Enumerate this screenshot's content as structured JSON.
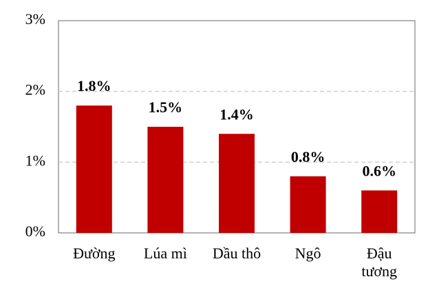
{
  "chart_data": {
    "type": "bar",
    "categories": [
      "Đường",
      "Lúa mì",
      "Dầu thô",
      "Ngô",
      "Đậu tương"
    ],
    "values": [
      1.8,
      1.5,
      1.4,
      0.8,
      0.6
    ],
    "value_labels": [
      "1.8%",
      "1.5%",
      "1.4%",
      "0.8%",
      "0.6%"
    ],
    "color": "#c00000",
    "ylim": [
      0,
      3
    ],
    "yticks": [
      {
        "value": 0,
        "label": "0%"
      },
      {
        "value": 1,
        "label": "1%"
      },
      {
        "value": 2,
        "label": "2%"
      },
      {
        "value": 3,
        "label": "3%"
      }
    ],
    "grid": true
  }
}
